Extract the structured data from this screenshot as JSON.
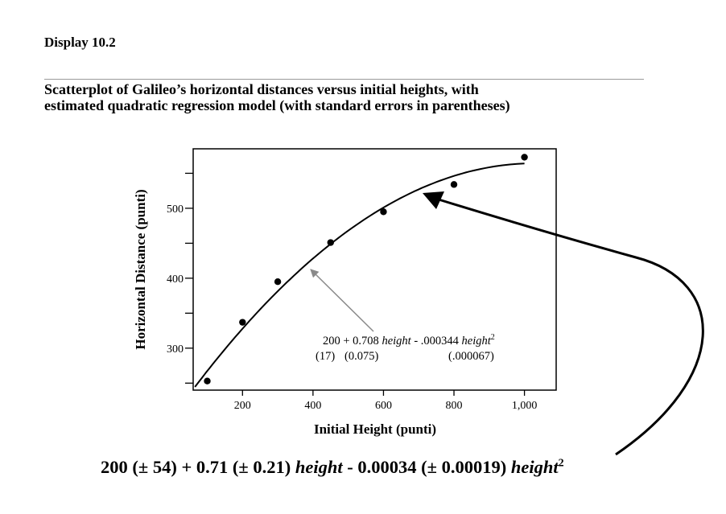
{
  "display_label": "Display 10.2",
  "caption": {
    "line1": "Scatterplot of Galileo’s horizontal distances versus initial heights, with",
    "line2": "estimated quadratic regression model (with standard errors in parentheses)"
  },
  "chart_data": {
    "type": "scatter",
    "xlabel": "Initial Height (punti)",
    "ylabel": "Horizontal Distance (punti)",
    "xlim": [
      60,
      1090
    ],
    "ylim": [
      240,
      585
    ],
    "x_ticks": [
      200,
      400,
      600,
      800,
      1000
    ],
    "x_tick_labels": [
      "200",
      "400",
      "600",
      "800",
      "1,000"
    ],
    "y_ticks": [
      300,
      400,
      500
    ],
    "y_tick_labels": [
      "300",
      "400",
      "500"
    ],
    "y_minor_ticks": [
      250,
      350,
      450,
      550
    ],
    "grid": false,
    "points": [
      {
        "x": 100,
        "y": 253
      },
      {
        "x": 200,
        "y": 337
      },
      {
        "x": 300,
        "y": 395
      },
      {
        "x": 450,
        "y": 451
      },
      {
        "x": 600,
        "y": 495
      },
      {
        "x": 800,
        "y": 534
      },
      {
        "x": 1000,
        "y": 573
      }
    ],
    "fit": {
      "intercept": 200,
      "b1": 0.708,
      "b2": -0.000344,
      "x_from": 65,
      "x_to": 1000
    },
    "annotation": {
      "line1_const": "200 + 0.708 ",
      "line1_var1": "height",
      "line1_mid": " - .000344 ",
      "line1_var2": "height",
      "line1_exp": "2",
      "line2_a": "(17)",
      "line2_b": "(0.075)",
      "line2_c": "(.000067)"
    }
  },
  "equation": {
    "part1": "200 (± 54) + 0.71 (± 0.21) ",
    "var1": "height",
    "part2": " - 0.00034 (± 0.00019) ",
    "var2": "height",
    "exp": "2"
  }
}
